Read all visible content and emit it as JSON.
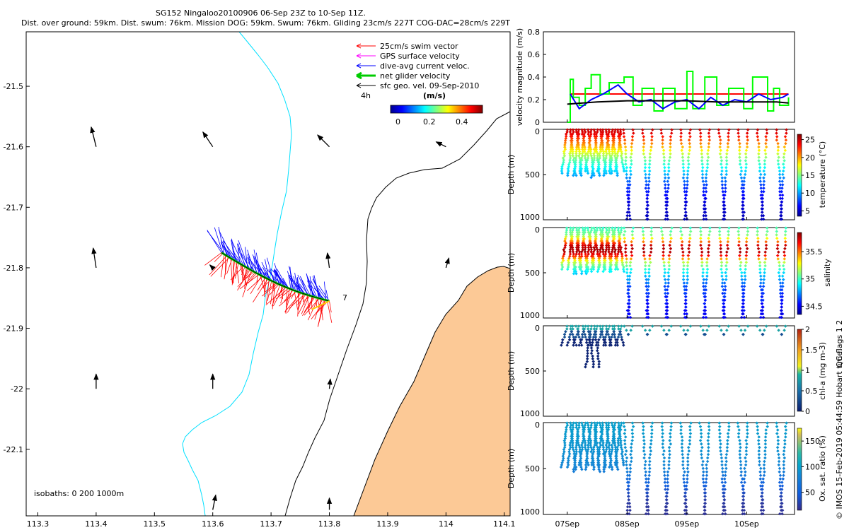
{
  "title_line1": "SG152 Ningaloo20100906 06-Sep 23Z to 10-Sep 11Z.",
  "title_line2": "Dist. over ground: 59km. Dist. swum: 76km. Mission DOG: 59km. Swum: 76km. Gliding 23cm/s 227T COG-DAC=28cm/s 229T",
  "colors": {
    "swim": "#ff0000",
    "gps": "#ff00ff",
    "dac": "#0000ff",
    "net": "#00ff00",
    "sfc": "#000000",
    "coast": "#000000",
    "isobath200": "#00e0ff",
    "land": "#fcc996"
  },
  "legend": {
    "items": [
      {
        "label": "25cm/s swim vector",
        "color": "#ff0000",
        "width": 1
      },
      {
        "label": "GPS surface velocity",
        "color": "#ff00ff",
        "width": 1
      },
      {
        "label": "dive-avg current veloc.",
        "color": "#0000ff",
        "width": 1
      },
      {
        "label": "net glider velocity",
        "color": "#00cc00",
        "width": 3
      },
      {
        "label": "sfc geo. vel. 09-Sep-2010",
        "color": "#000000",
        "width": 1
      }
    ],
    "interval_label": "4h",
    "colorbar_title": "(m/s)",
    "colorbar_ticks": [
      "0",
      "0.2",
      "0.4"
    ]
  },
  "isobath_note": "isobaths: 0   200  1000m",
  "end_marker": "7",
  "map_axes": {
    "x_ticks": [
      "113.3",
      "113.4",
      "113.5",
      "113.6",
      "113.7",
      "113.8",
      "113.9",
      "114",
      "114.1"
    ],
    "y_ticks": [
      "-21.5",
      "-21.6",
      "-21.7",
      "-21.8",
      "-21.9",
      "-22",
      "-22.1"
    ]
  },
  "chart_data": [
    {
      "type": "map",
      "title": "SG152 Ningaloo20100906 06-Sep 23Z to 10-Sep 11Z.",
      "xlim": [
        113.28,
        114.11
      ],
      "ylim": [
        -22.21,
        -21.41
      ],
      "track_start": [
        113.615,
        -21.775
      ],
      "track_end": [
        113.8,
        -21.855
      ],
      "sfc_geo_vectors": [
        {
          "lon": 113.4,
          "lat": -21.6,
          "u": -0.05,
          "v": 0.2
        },
        {
          "lon": 113.6,
          "lat": -21.6,
          "u": -0.1,
          "v": 0.15
        },
        {
          "lon": 113.8,
          "lat": -21.6,
          "u": -0.12,
          "v": 0.12
        },
        {
          "lon": 114.0,
          "lat": -21.6,
          "u": -0.1,
          "v": 0.05
        },
        {
          "lon": 113.4,
          "lat": -21.8,
          "u": -0.03,
          "v": 0.2
        },
        {
          "lon": 113.6,
          "lat": -21.8,
          "u": -0.03,
          "v": 0.03
        },
        {
          "lon": 113.8,
          "lat": -21.8,
          "u": -0.02,
          "v": 0.15
        },
        {
          "lon": 114.0,
          "lat": -21.8,
          "u": 0.03,
          "v": 0.1
        },
        {
          "lon": 113.4,
          "lat": -22.0,
          "u": 0.0,
          "v": 0.15
        },
        {
          "lon": 113.6,
          "lat": -22.0,
          "u": 0.0,
          "v": 0.15
        },
        {
          "lon": 113.8,
          "lat": -22.0,
          "u": 0.01,
          "v": 0.1
        },
        {
          "lon": 113.6,
          "lat": -22.2,
          "u": 0.03,
          "v": 0.15
        },
        {
          "lon": 113.8,
          "lat": -22.2,
          "u": 0.0,
          "v": 0.12
        }
      ]
    },
    {
      "type": "line",
      "ylabel": "velocity magnitude (m/s)",
      "xlim": [
        6.6,
        10.8
      ],
      "ylim": [
        0,
        0.8
      ],
      "y_ticks": [
        "0",
        "0.2",
        "0.4",
        "0.6",
        "0.8"
      ],
      "series": [
        {
          "name": "swim speed",
          "color": "#ff0000",
          "x": [
            7.05,
            10.7
          ],
          "values": [
            0.25,
            0.25
          ]
        },
        {
          "name": "net glider velocity",
          "color": "#00ff00",
          "x": [
            7.0,
            7.05,
            7.1,
            7.2,
            7.3,
            7.4,
            7.55,
            7.7,
            7.95,
            8.1,
            8.25,
            8.45,
            8.6,
            8.8,
            9.0,
            9.1,
            9.3,
            9.5,
            9.7,
            9.95,
            10.1,
            10.35,
            10.45,
            10.55,
            10.7
          ],
          "values": [
            0.0,
            0.38,
            0.22,
            0.15,
            0.3,
            0.42,
            0.25,
            0.35,
            0.4,
            0.15,
            0.3,
            0.1,
            0.3,
            0.12,
            0.45,
            0.12,
            0.4,
            0.15,
            0.3,
            0.12,
            0.4,
            0.1,
            0.3,
            0.15,
            0.22
          ]
        },
        {
          "name": "dive-avg current",
          "color": "#0000ff",
          "x": [
            7.05,
            7.2,
            7.4,
            7.6,
            7.85,
            8.0,
            8.2,
            8.4,
            8.6,
            8.8,
            9.0,
            9.2,
            9.4,
            9.6,
            9.8,
            10.0,
            10.2,
            10.4,
            10.6,
            10.7
          ],
          "values": [
            0.25,
            0.12,
            0.2,
            0.25,
            0.33,
            0.25,
            0.18,
            0.2,
            0.12,
            0.18,
            0.2,
            0.12,
            0.22,
            0.15,
            0.2,
            0.18,
            0.25,
            0.2,
            0.22,
            0.25
          ]
        },
        {
          "name": "sfc geo velocity",
          "color": "#000000",
          "x": [
            7.0,
            7.5,
            8.0,
            8.5,
            9.0,
            9.5,
            10.0,
            10.5,
            10.7
          ],
          "values": [
            0.16,
            0.18,
            0.19,
            0.19,
            0.19,
            0.18,
            0.18,
            0.18,
            0.17
          ]
        }
      ]
    },
    {
      "type": "scatter",
      "variable": "temperature",
      "ylabel": "Depth (m)",
      "clabel": "temperature (°C)",
      "ylim": [
        1000,
        0
      ],
      "y_ticks": [
        "0",
        "500",
        "1000"
      ],
      "clim": [
        3.5,
        26.5
      ],
      "c_ticks": [
        "5",
        "10",
        "15",
        "20",
        "25"
      ],
      "profile_times_days": [
        7.0,
        7.05,
        7.1,
        7.15,
        7.2,
        7.25,
        7.3,
        7.35,
        7.4,
        7.45,
        7.5,
        7.55,
        7.6,
        7.65,
        7.7,
        7.75,
        7.8,
        7.85,
        7.9,
        7.95,
        8.1,
        8.26,
        8.42,
        8.58,
        8.74,
        8.9,
        9.06,
        9.22,
        9.38,
        9.54,
        9.7,
        9.86,
        10.02,
        10.18,
        10.34,
        10.5,
        10.66
      ],
      "max_depth_before_8sep_m": 500,
      "max_depth_after_8sep_m": 1000,
      "profile": [
        [
          0,
          25
        ],
        [
          60,
          24
        ],
        [
          110,
          22
        ],
        [
          180,
          20
        ],
        [
          260,
          17
        ],
        [
          350,
          14
        ],
        [
          450,
          11.5
        ],
        [
          600,
          8
        ],
        [
          800,
          5.5
        ],
        [
          1000,
          4.5
        ]
      ]
    },
    {
      "type": "scatter",
      "variable": "salinity",
      "ylabel": "Depth (m)",
      "clabel": "salinity",
      "ylim": [
        1000,
        0
      ],
      "y_ticks": [
        "0",
        "500",
        "1000"
      ],
      "clim": [
        34.35,
        35.85
      ],
      "c_ticks": [
        "34.5",
        "35",
        "35.5"
      ],
      "profile": [
        [
          0,
          35.0
        ],
        [
          80,
          35.1
        ],
        [
          140,
          35.4
        ],
        [
          200,
          35.75
        ],
        [
          260,
          35.8
        ],
        [
          320,
          35.6
        ],
        [
          380,
          35.2
        ],
        [
          480,
          34.9
        ],
        [
          650,
          34.65
        ],
        [
          850,
          34.55
        ],
        [
          1000,
          34.5
        ]
      ]
    },
    {
      "type": "scatter",
      "variable": "chl-a",
      "ylabel": "Depth (m)",
      "clabel": "chl-a (mg m-3)",
      "ylim": [
        1000,
        0
      ],
      "y_ticks": [
        "0",
        "500",
        "1000"
      ],
      "clim": [
        0,
        2
      ],
      "c_ticks": [
        "0",
        "0.5",
        "1",
        "1.5",
        "2"
      ],
      "max_depth_m": 500
    },
    {
      "type": "scatter",
      "variable": "oxygen",
      "ylabel": "Depth (m)",
      "clabel": "Ox. sat. ratio (%)",
      "ylim": [
        1000,
        0
      ],
      "y_ticks": [
        "0",
        "500",
        "1000"
      ],
      "clim": [
        15,
        175
      ],
      "c_ticks": [
        "50",
        "100",
        "150"
      ],
      "profile": [
        [
          0,
          100
        ],
        [
          150,
          95
        ],
        [
          300,
          90
        ],
        [
          500,
          80
        ],
        [
          700,
          45
        ],
        [
          850,
          25
        ],
        [
          1000,
          20
        ]
      ]
    }
  ],
  "time_axis": {
    "ticks": [
      "07Sep",
      "08Sep",
      "09Sep",
      "10Sep"
    ],
    "tick_days": [
      7,
      8,
      9,
      10
    ]
  },
  "side_note": "QC flags 1  2",
  "credit": "© IMOS 15-Feb-2019 05:44:59 Hobart time."
}
